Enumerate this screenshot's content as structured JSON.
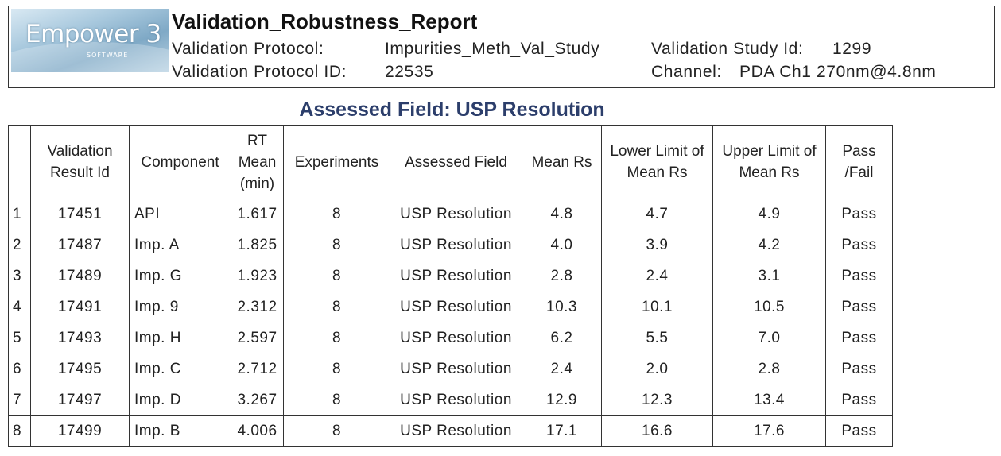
{
  "logo": {
    "brand": "Empower 3",
    "sub": "SOFTWARE"
  },
  "header": {
    "title": "Validation_Robustness_Report",
    "protocol_label": "Validation Protocol:",
    "protocol_value": "Impurities_Meth_Val_Study",
    "protocol_id_label": "Validation Protocol ID:",
    "protocol_id_value": "22535",
    "study_id_label": "Validation Study Id:",
    "study_id_value": "1299",
    "channel_label": "Channel:",
    "channel_value": "PDA Ch1 270nm@4.8nm"
  },
  "section": {
    "title": "Assessed Field: USP Resolution"
  },
  "table": {
    "headers": [
      "",
      "Validation Result Id",
      "Component",
      "RT Mean (min)",
      "Experiments",
      "Assessed Field",
      "Mean Rs",
      "Lower Limit of Mean Rs",
      "Upper Limit of Mean Rs",
      "Pass /Fail"
    ],
    "rows": [
      [
        "1",
        "17451",
        "API",
        "1.617",
        "8",
        "USP Resolution",
        "4.8",
        "4.7",
        "4.9",
        "Pass"
      ],
      [
        "2",
        "17487",
        "Imp. A",
        "1.825",
        "8",
        "USP Resolution",
        "4.0",
        "3.9",
        "4.2",
        "Pass"
      ],
      [
        "3",
        "17489",
        "Imp. G",
        "1.923",
        "8",
        "USP Resolution",
        "2.8",
        "2.4",
        "3.1",
        "Pass"
      ],
      [
        "4",
        "17491",
        "Imp. 9",
        "2.312",
        "8",
        "USP Resolution",
        "10.3",
        "10.1",
        "10.5",
        "Pass"
      ],
      [
        "5",
        "17493",
        "Imp. H",
        "2.597",
        "8",
        "USP Resolution",
        "6.2",
        "5.5",
        "7.0",
        "Pass"
      ],
      [
        "6",
        "17495",
        "Imp. C",
        "2.712",
        "8",
        "USP Resolution",
        "2.4",
        "2.0",
        "2.8",
        "Pass"
      ],
      [
        "7",
        "17497",
        "Imp. D",
        "3.267",
        "8",
        "USP Resolution",
        "12.9",
        "12.3",
        "13.4",
        "Pass"
      ],
      [
        "8",
        "17499",
        "Imp. B",
        "4.006",
        "8",
        "USP Resolution",
        "17.1",
        "16.6",
        "17.6",
        "Pass"
      ]
    ]
  }
}
